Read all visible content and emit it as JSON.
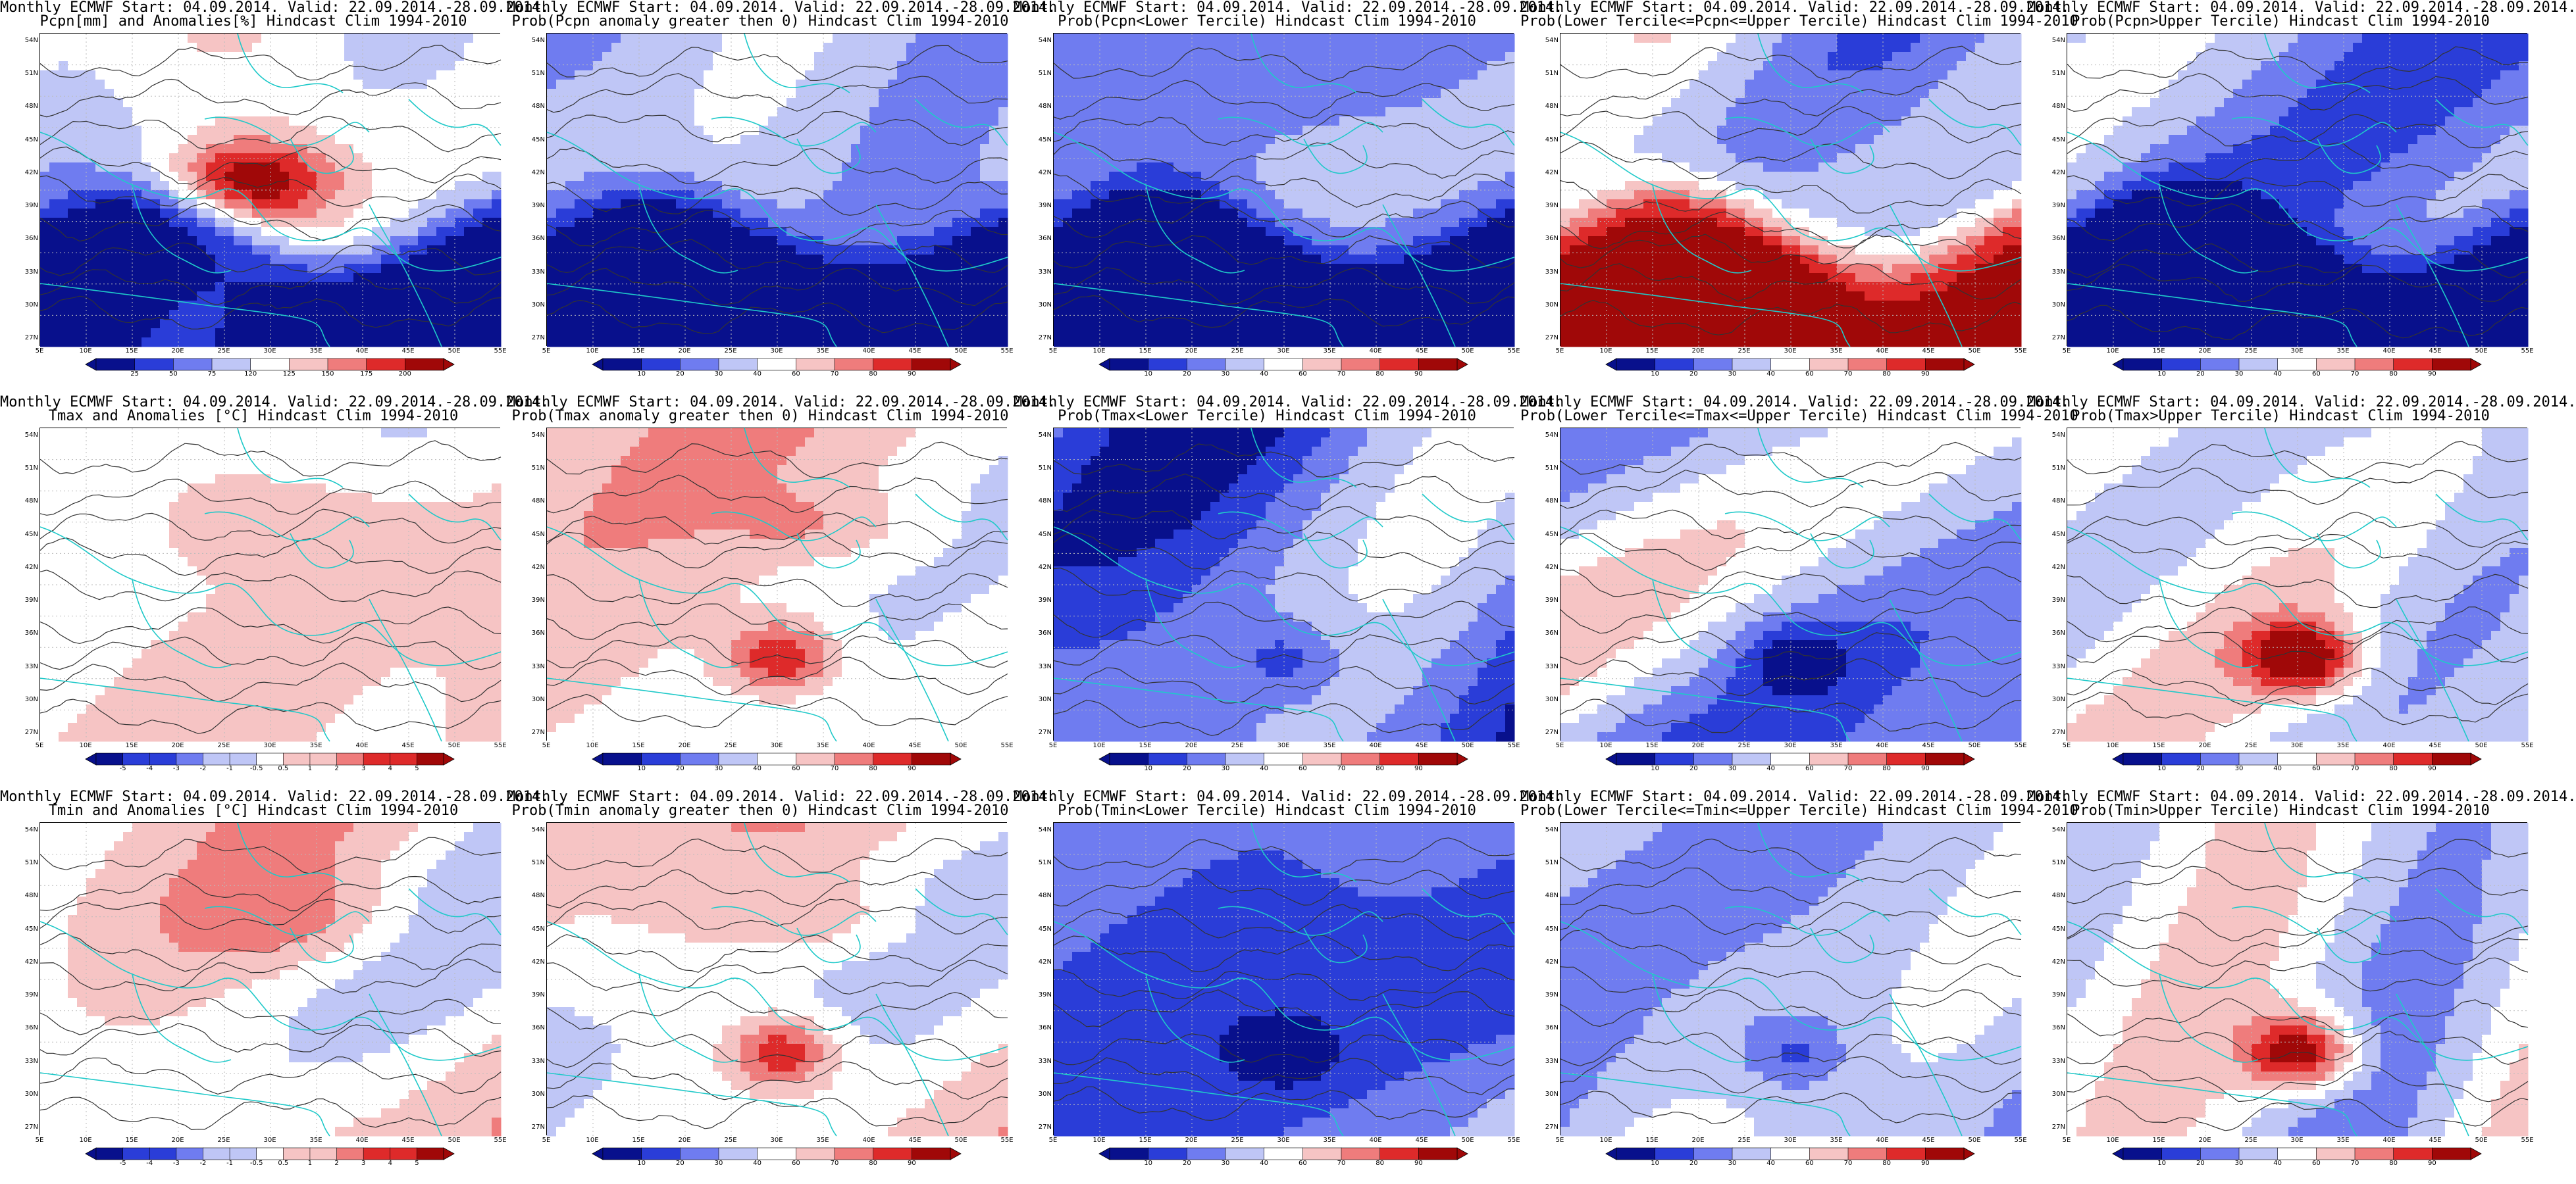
{
  "colors": {
    "dark_blue": "#08108c",
    "blue": "#2a3dd8",
    "mid_blue": "#6f7cf0",
    "light_blue": "#bfc6f6",
    "white": "#ffffff",
    "light_red": "#f6c4c4",
    "mid_red": "#ef7c7c",
    "red": "#de2a2a",
    "dark_red": "#a00808",
    "coast": "#1fc9c9",
    "contour": "#333333",
    "grid_line": "#bbbbbb"
  },
  "axes": {
    "lat_labels": [
      "54N",
      "51N",
      "48N",
      "45N",
      "42N",
      "39N",
      "36N",
      "33N",
      "30N",
      "27N"
    ],
    "lon_labels": [
      "5E",
      "10E",
      "15E",
      "20E",
      "25E",
      "30E",
      "35E",
      "40E",
      "45E",
      "50E",
      "55E"
    ]
  },
  "colorbars": {
    "anom_pcpn": {
      "labels": [
        "25",
        "50",
        "75",
        "120",
        "125",
        "150",
        "175",
        "200"
      ]
    },
    "prob": {
      "labels": [
        "10",
        "20",
        "30",
        "40",
        "60",
        "70",
        "80",
        "90"
      ]
    },
    "anom_temp": {
      "labels": [
        "-5",
        "-4",
        "-3",
        "-2",
        "-1",
        "-0.5",
        "0.5",
        "1",
        "2",
        "3",
        "4",
        "5"
      ]
    }
  },
  "panels": [
    {
      "title1": "Monthly ECMWF Start: 04.09.2014. Valid: 22.09.2014.-28.09.2014.",
      "title2": "Pcpn[mm] and Anomalies[%] Hindcast Clim 1994-2010",
      "cbar": "anom_pcpn",
      "map": {
        "pattern": "pcpn_anom",
        "seed": 11,
        "icon": ""
      }
    },
    {
      "title1": "Monthly ECMWF Start: 04.09.2014. Valid: 22.09.2014.-28.09.2014.",
      "title2": "Prob(Pcpn anomaly greater then 0) Hindcast Clim 1994-2010",
      "cbar": "prob",
      "map": {
        "pattern": "blue_south",
        "seed": 23,
        "icon": ""
      }
    },
    {
      "title1": "Monthly ECMWF Start: 04.09.2014. Valid: 22.09.2014.-28.09.2014.",
      "title2": "Prob(Pcpn<Lower Tercile) Hindcast Clim 1994-2010",
      "cbar": "prob",
      "map": {
        "pattern": "blue_south_strong",
        "seed": 37,
        "icon": ""
      }
    },
    {
      "title1": "Monthly ECMWF Start: 04.09.2014. Valid: 22.09.2014.-28.09.2014.",
      "title2": "Prob(Lower Tercile<=Pcpn<=Upper Tercile) Hindcast Clim 1994-2010",
      "cbar": "prob",
      "map": {
        "pattern": "red_south",
        "seed": 41,
        "icon": ""
      }
    },
    {
      "title1": "Monthly ECMWF Start: 04.09.2014. Valid: 22.09.2014.-28.09.2014.",
      "title2": "Prob(Pcpn>Upper Tercile) Hindcast Clim 1994-2010",
      "cbar": "prob",
      "map": {
        "pattern": "blue_south",
        "seed": 53,
        "icon": ""
      }
    },
    {
      "title1": "Monthly ECMWF Start: 04.09.2014. Valid: 22.09.2014.-28.09.2014.",
      "title2": "Tmax and Anomalies [°C] Hindcast Clim 1994-2010",
      "cbar": "anom_temp",
      "map": {
        "pattern": "temp_anom_light",
        "seed": 61,
        "icon": ""
      }
    },
    {
      "title1": "Monthly ECMWF Start: 04.09.2014. Valid: 22.09.2014.-28.09.2014.",
      "title2": "Prob(Tmax anomaly greater then 0) Hindcast Clim 1994-2010",
      "cbar": "prob",
      "map": {
        "pattern": "red_warm",
        "seed": 67,
        "icon": ""
      }
    },
    {
      "title1": "Monthly ECMWF Start: 04.09.2014. Valid: 22.09.2014.-28.09.2014.",
      "title2": "Prob(Tmax<Lower Tercile) Hindcast Clim 1994-2010",
      "cbar": "prob",
      "map": {
        "pattern": "blue_cold",
        "seed": 71,
        "icon": ""
      }
    },
    {
      "title1": "Monthly ECMWF Start: 04.09.2014. Valid: 22.09.2014.-28.09.2014.",
      "title2": "Prob(Lower Tercile<=Tmax<=Upper Tercile) Hindcast Clim 1994-2010",
      "cbar": "prob",
      "map": {
        "pattern": "blue_mixed",
        "seed": 79,
        "icon": ""
      }
    },
    {
      "title1": "Monthly ECMWF Start: 04.09.2014. Valid: 22.09.2014.-28.09.2014.",
      "title2": "Prob(Tmax>Upper Tercile) Hindcast Clim 1994-2010",
      "cbar": "prob",
      "map": {
        "pattern": "mixed_red_center",
        "seed": 83,
        "icon": ""
      }
    },
    {
      "title1": "Monthly ECMWF Start: 04.09.2014. Valid: 22.09.2014.-28.09.2014.",
      "title2": "Tmin and Anomalies [°C] Hindcast Clim 1994-2010",
      "cbar": "anom_temp",
      "map": {
        "pattern": "temp_anom_light",
        "seed": 89,
        "icon": ""
      }
    },
    {
      "title1": "Monthly ECMWF Start: 04.09.2014. Valid: 22.09.2014.-28.09.2014.",
      "title2": "Prob(Tmin anomaly greater then 0) Hindcast Clim 1994-2010",
      "cbar": "prob",
      "map": {
        "pattern": "red_warm",
        "seed": 97,
        "icon": ""
      }
    },
    {
      "title1": "Monthly ECMWF Start: 04.09.2014. Valid: 22.09.2014.-28.09.2014.",
      "title2": "Prob(Tmin<Lower Tercile) Hindcast Clim 1994-2010",
      "cbar": "prob",
      "map": {
        "pattern": "blue_cold",
        "seed": 101,
        "icon": ""
      }
    },
    {
      "title1": "Monthly ECMWF Start: 04.09.2014. Valid: 22.09.2014.-28.09.2014.",
      "title2": "Prob(Lower Tercile<=Tmin<=Upper Tercile) Hindcast Clim 1994-2010",
      "cbar": "prob",
      "map": {
        "pattern": "blue_mixed",
        "seed": 103,
        "icon": ""
      }
    },
    {
      "title1": "Monthly ECMWF Start: 04.09.2014. Valid: 22.09.2014.-28.09.2014.",
      "title2": "Prob(Tmin>Upper Tercile) Hindcast Clim 1994-2010",
      "cbar": "prob",
      "map": {
        "pattern": "mixed_red_center",
        "seed": 107,
        "icon": ""
      }
    }
  ]
}
